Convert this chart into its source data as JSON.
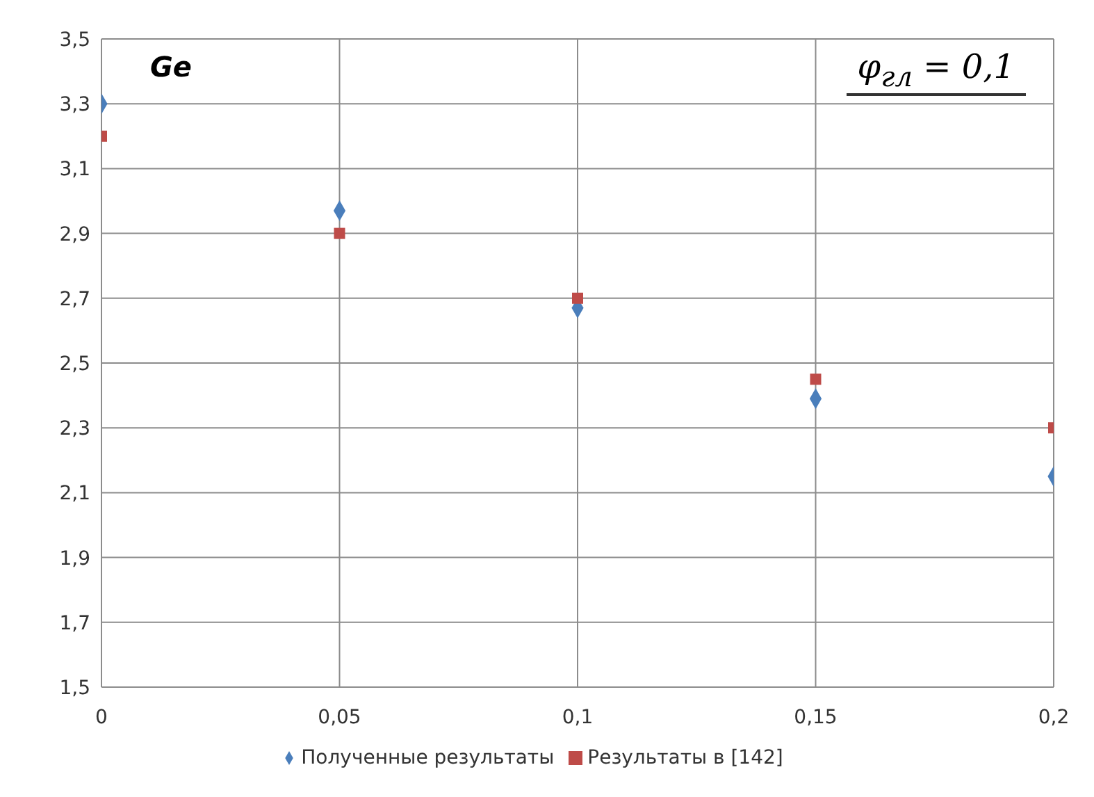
{
  "chart_data": {
    "type": "scatter",
    "x": [
      0,
      0.05,
      0.1,
      0.15,
      0.2
    ],
    "series": [
      {
        "name": "Полученные результаты",
        "color": "#4a7ebb",
        "marker": "diamond",
        "values": [
          3.3,
          2.97,
          2.67,
          2.39,
          2.15
        ]
      },
      {
        "name": "Результаты в [142]",
        "color": "#be4b48",
        "marker": "square",
        "values": [
          3.2,
          2.9,
          2.7,
          2.45,
          2.3
        ]
      }
    ],
    "xlim": [
      0,
      0.2
    ],
    "xticks": [
      0,
      {
        "value": 0.05,
        "label": "0,05"
      },
      {
        "value": 0.1,
        "label": "0,1"
      },
      {
        "value": 0.15,
        "label": "0,15"
      },
      {
        "value": 0.2,
        "label": "0,2"
      }
    ],
    "ylim": [
      1.5,
      3.5
    ],
    "yticks": [
      {
        "value": 1.5,
        "label": "1,5"
      },
      {
        "value": 1.7,
        "label": "1,7"
      },
      {
        "value": 1.9,
        "label": "1,9"
      },
      {
        "value": 2.1,
        "label": "2,1"
      },
      {
        "value": 2.3,
        "label": "2,3"
      },
      {
        "value": 2.5,
        "label": "2,5"
      },
      {
        "value": 2.7,
        "label": "2,7"
      },
      {
        "value": 2.9,
        "label": "2,9"
      },
      {
        "value": 3.1,
        "label": "3,1"
      },
      {
        "value": 3.3,
        "label": "3,3"
      },
      {
        "value": 3.5,
        "label": "3,5"
      }
    ],
    "annotations": [
      "Ge",
      "φ$_{гл}$ = 0,1"
    ],
    "grid": true,
    "legend": "bottom"
  }
}
